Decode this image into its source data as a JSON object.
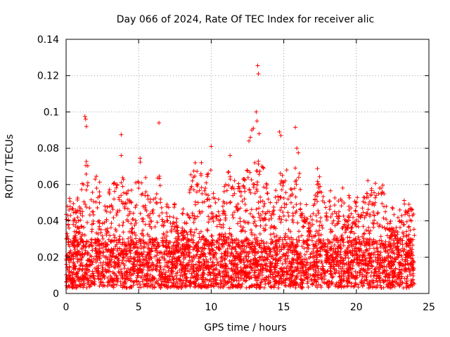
{
  "chart_data": {
    "type": "scatter",
    "title": "Day 066 of 2024, Rate Of TEC Index for receiver alic",
    "xlabel": "GPS time / hours",
    "ylabel": "ROTI / TECUs",
    "xlim": [
      0,
      25
    ],
    "ylim": [
      0,
      0.14
    ],
    "x_ticks": [
      0,
      5,
      10,
      15,
      20,
      25
    ],
    "x_tick_labels": [
      "0",
      "5",
      "10",
      "15",
      "20",
      "25"
    ],
    "y_ticks": [
      0,
      0.02,
      0.04,
      0.06,
      0.08,
      0.1,
      0.12,
      0.14
    ],
    "y_tick_labels": [
      "0",
      "0.02",
      "0.04",
      "0.06",
      "0.08",
      "0.1",
      "0.12",
      "0.14"
    ],
    "grid": true,
    "marker": "+",
    "color": "#ff0000",
    "series": [
      {
        "name": "ROTI",
        "points": [
          [
            0.1,
            0.048
          ],
          [
            0.2,
            0.046
          ],
          [
            0.3,
            0.043
          ],
          [
            0.5,
            0.04
          ],
          [
            0.8,
            0.042
          ],
          [
            1.0,
            0.044
          ],
          [
            1.3,
            0.0975
          ],
          [
            1.35,
            0.096
          ],
          [
            1.4,
            0.092
          ],
          [
            1.2,
            0.06
          ],
          [
            1.5,
            0.061
          ],
          [
            1.8,
            0.045
          ],
          [
            2.0,
            0.063
          ],
          [
            2.1,
            0.058
          ],
          [
            2.3,
            0.05
          ],
          [
            2.8,
            0.045
          ],
          [
            3.0,
            0.048
          ],
          [
            3.3,
            0.052
          ],
          [
            3.5,
            0.06
          ],
          [
            3.8,
            0.0875
          ],
          [
            3.8,
            0.076
          ],
          [
            3.9,
            0.059
          ],
          [
            4.2,
            0.055
          ],
          [
            4.5,
            0.05
          ],
          [
            4.8,
            0.061
          ],
          [
            5.0,
            0.058
          ],
          [
            5.1,
            0.0745
          ],
          [
            5.3,
            0.048
          ],
          [
            5.5,
            0.056
          ],
          [
            5.8,
            0.052
          ],
          [
            6.0,
            0.046
          ],
          [
            6.2,
            0.05
          ],
          [
            6.4,
            0.094
          ],
          [
            6.5,
            0.052
          ],
          [
            7.0,
            0.04
          ],
          [
            7.5,
            0.037
          ],
          [
            8.0,
            0.036
          ],
          [
            8.5,
            0.042
          ],
          [
            8.6,
            0.058
          ],
          [
            8.7,
            0.062
          ],
          [
            8.8,
            0.0675
          ],
          [
            8.9,
            0.072
          ],
          [
            9.0,
            0.06
          ],
          [
            9.3,
            0.065
          ],
          [
            9.6,
            0.058
          ],
          [
            9.8,
            0.066
          ],
          [
            10.0,
            0.081
          ],
          [
            10.3,
            0.05
          ],
          [
            10.5,
            0.045
          ],
          [
            10.8,
            0.048
          ],
          [
            11.0,
            0.06
          ],
          [
            11.2,
            0.067
          ],
          [
            11.3,
            0.076
          ],
          [
            11.4,
            0.058
          ],
          [
            11.6,
            0.055
          ],
          [
            11.9,
            0.059
          ],
          [
            12.0,
            0.047
          ],
          [
            12.2,
            0.063
          ],
          [
            12.3,
            0.058
          ],
          [
            12.5,
            0.0675
          ],
          [
            12.6,
            0.084
          ],
          [
            12.7,
            0.086
          ],
          [
            12.8,
            0.09
          ],
          [
            12.9,
            0.091
          ],
          [
            13.0,
            0.072
          ],
          [
            13.1,
            0.1
          ],
          [
            13.15,
            0.095
          ],
          [
            13.2,
            0.1255
          ],
          [
            13.25,
            0.121
          ],
          [
            13.3,
            0.088
          ],
          [
            13.5,
            0.07
          ],
          [
            13.6,
            0.069
          ],
          [
            13.8,
            0.058
          ],
          [
            14.0,
            0.045
          ],
          [
            14.2,
            0.044
          ],
          [
            14.5,
            0.05
          ],
          [
            14.7,
            0.089
          ],
          [
            14.8,
            0.087
          ],
          [
            14.9,
            0.065
          ],
          [
            15.0,
            0.061
          ],
          [
            15.1,
            0.062
          ],
          [
            15.2,
            0.068
          ],
          [
            15.3,
            0.052
          ],
          [
            15.5,
            0.05
          ],
          [
            15.8,
            0.0915
          ],
          [
            15.9,
            0.08
          ],
          [
            16.0,
            0.0775
          ],
          [
            16.2,
            0.044
          ],
          [
            16.5,
            0.04
          ],
          [
            17.0,
            0.038
          ],
          [
            17.3,
            0.06
          ],
          [
            17.5,
            0.059
          ],
          [
            17.8,
            0.05
          ],
          [
            18.2,
            0.048
          ],
          [
            18.5,
            0.045
          ],
          [
            18.8,
            0.045
          ],
          [
            19.0,
            0.051
          ],
          [
            19.5,
            0.046
          ],
          [
            20.0,
            0.048
          ],
          [
            20.3,
            0.042
          ],
          [
            20.6,
            0.05
          ],
          [
            20.8,
            0.053
          ],
          [
            21.0,
            0.054
          ],
          [
            21.3,
            0.05
          ],
          [
            21.6,
            0.058
          ],
          [
            21.8,
            0.056
          ],
          [
            22.0,
            0.045
          ],
          [
            22.5,
            0.035
          ],
          [
            23.0,
            0.04
          ],
          [
            23.3,
            0.038
          ],
          [
            23.6,
            0.046
          ],
          [
            23.8,
            0.04
          ],
          [
            24.0,
            0.032
          ]
        ],
        "dense_band": {
          "note": "thousands of points concentrated between 0.005 and 0.03 TECU across 0-24 h",
          "x_range": [
            0,
            24
          ],
          "y_range": [
            0.003,
            0.03
          ]
        }
      }
    ]
  }
}
